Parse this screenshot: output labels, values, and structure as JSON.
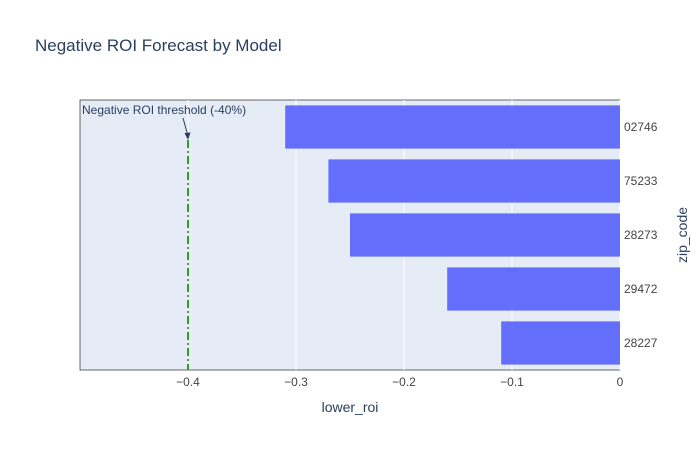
{
  "colors": {
    "plot_bg": "#e5ecf6",
    "grid": "#ffffff",
    "bar": "#636efa",
    "threshold": "#2ca02c",
    "text": "#2a3f5f",
    "tick": "#444444"
  },
  "chart_data": {
    "type": "bar",
    "orientation": "horizontal",
    "title": "Negative ROI Forecast by Model",
    "xlabel": "lower_roi",
    "ylabel": "zip_code",
    "y_axis_side": "right",
    "xlim": [
      -0.5,
      0
    ],
    "x_ticks": [
      -0.4,
      -0.3,
      -0.2,
      -0.1,
      0
    ],
    "x_tick_labels": [
      "−0.4",
      "−0.3",
      "−0.2",
      "−0.1",
      "0"
    ],
    "categories": [
      "02746",
      "75233",
      "28273",
      "29472",
      "28227"
    ],
    "values": [
      -0.31,
      -0.27,
      -0.25,
      -0.16,
      -0.11
    ],
    "grid": true,
    "threshold": {
      "x": -0.4,
      "label": "Negative ROI threshold (-40%)"
    }
  }
}
